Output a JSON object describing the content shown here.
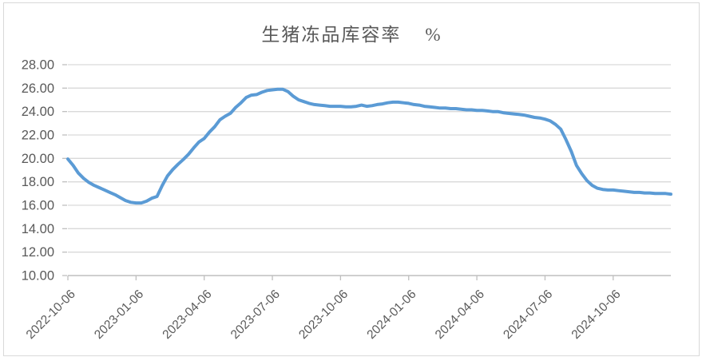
{
  "window": {
    "background": "#FFFFFF",
    "frame_border_color": "#D9D9D9"
  },
  "chart_data": {
    "type": "line",
    "title": "生猪冻品库容率",
    "unit_label": "%",
    "x_tick_labels": [
      "2022-10-06",
      "2023-01-06",
      "2023-04-06",
      "2023-07-06",
      "2023-10-06",
      "2024-01-06",
      "2024-04-06",
      "2024-07-06",
      "2024-10-06"
    ],
    "x_tick_weeks": [
      0,
      13,
      26,
      39,
      52,
      65,
      78,
      91,
      104
    ],
    "y_tick_labels": [
      "28.00",
      "26.00",
      "24.00",
      "22.00",
      "20.00",
      "18.00",
      "16.00",
      "14.00",
      "12.00",
      "10.00"
    ],
    "ylim": [
      10,
      28
    ],
    "grid": true,
    "legend": false,
    "gridline_color": "#D9D9D9",
    "axis_color": "#BFBFBF",
    "label_color": "#595959",
    "title_color": "#595959",
    "series": [
      {
        "name": "生猪冻品库容率",
        "color": "#5B9BD5",
        "frequency": "weekly",
        "start_label": "2022-10-06",
        "values": [
          19.95,
          19.4,
          18.75,
          18.3,
          17.95,
          17.7,
          17.5,
          17.3,
          17.1,
          16.9,
          16.65,
          16.4,
          16.25,
          16.2,
          16.2,
          16.35,
          16.6,
          16.75,
          17.7,
          18.5,
          19.05,
          19.5,
          19.9,
          20.35,
          20.9,
          21.4,
          21.7,
          22.25,
          22.7,
          23.3,
          23.6,
          23.85,
          24.35,
          24.75,
          25.2,
          25.4,
          25.45,
          25.65,
          25.8,
          25.85,
          25.9,
          25.9,
          25.7,
          25.3,
          25.0,
          24.85,
          24.7,
          24.6,
          24.55,
          24.5,
          24.45,
          24.45,
          24.45,
          24.4,
          24.4,
          24.45,
          24.55,
          24.45,
          24.5,
          24.6,
          24.65,
          24.75,
          24.8,
          24.8,
          24.75,
          24.7,
          24.6,
          24.55,
          24.45,
          24.4,
          24.35,
          24.3,
          24.3,
          24.25,
          24.25,
          24.2,
          24.15,
          24.15,
          24.1,
          24.1,
          24.05,
          24.0,
          24.0,
          23.9,
          23.85,
          23.8,
          23.75,
          23.7,
          23.6,
          23.5,
          23.45,
          23.35,
          23.2,
          22.9,
          22.5,
          21.6,
          20.6,
          19.4,
          18.7,
          18.1,
          17.7,
          17.45,
          17.35,
          17.3,
          17.3,
          17.25,
          17.2,
          17.15,
          17.1,
          17.1,
          17.05,
          17.05,
          17.0,
          17.0,
          17.0,
          16.95
        ]
      }
    ]
  }
}
